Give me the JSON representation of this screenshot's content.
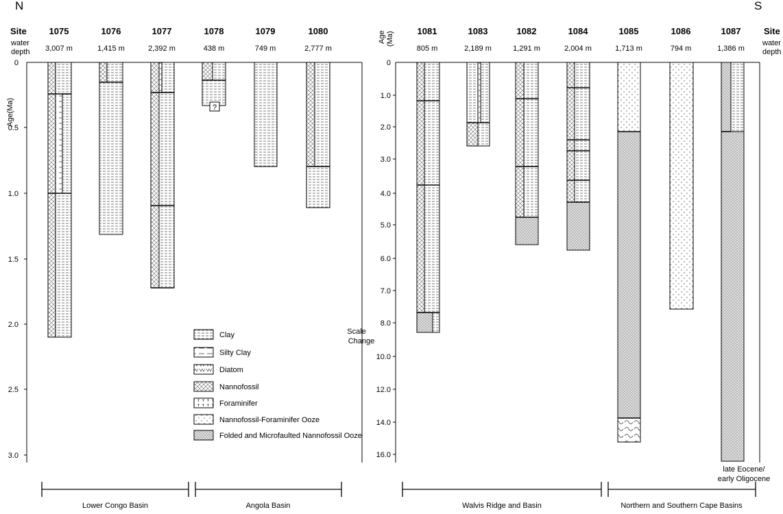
{
  "compass": {
    "north": "N",
    "south": "S"
  },
  "labels": {
    "site": "Site",
    "water_depth_line1": "water",
    "water_depth_line2": "depth",
    "age_left": "Age(Ma)",
    "age_right_line1": "Age",
    "age_right_line2": "(Ma)",
    "scale_change_line1": "Scale",
    "scale_change_line2": "Change",
    "question_mark": "?",
    "bottom_1087_line1": "late Eocene/",
    "bottom_1087_line2": "early Oligocene"
  },
  "left_panel": {
    "sites": [
      {
        "id": "1075",
        "depth": "3,007 m"
      },
      {
        "id": "1076",
        "depth": "1,415 m"
      },
      {
        "id": "1077",
        "depth": "2,392 m"
      },
      {
        "id": "1078",
        "depth": "438 m"
      },
      {
        "id": "1079",
        "depth": "749 m"
      },
      {
        "id": "1080",
        "depth": "2,777 m"
      }
    ],
    "ticks": [
      "0",
      "0.5",
      "1.0",
      "1.5",
      "2.0",
      "2.5",
      "3.0"
    ]
  },
  "right_panel": {
    "sites": [
      {
        "id": "1081",
        "depth": "805 m"
      },
      {
        "id": "1083",
        "depth": "2,189 m"
      },
      {
        "id": "1082",
        "depth": "1,291 m"
      },
      {
        "id": "1084",
        "depth": "2,004 m"
      },
      {
        "id": "1085",
        "depth": "1,713 m"
      },
      {
        "id": "1086",
        "depth": "794 m"
      },
      {
        "id": "1087",
        "depth": "1,386 m"
      }
    ],
    "ticks": [
      "0",
      "1.0",
      "2.0",
      "3.0",
      "4.0",
      "5.0",
      "6.0",
      "7.0",
      "8.0",
      "10.0",
      "12.0",
      "14.0",
      "16.0"
    ]
  },
  "legend": [
    {
      "label": "Clay",
      "pattern": "clay"
    },
    {
      "label": "Silty Clay",
      "pattern": "silty"
    },
    {
      "label": "Diatom",
      "pattern": "diatom"
    },
    {
      "label": "Nannofossil",
      "pattern": "nanno"
    },
    {
      "label": "Foraminifer",
      "pattern": "foram"
    },
    {
      "label": "Nannofossil-Foraminifer Ooze",
      "pattern": "ooze"
    },
    {
      "label": "Folded and Microfaulted Nannofossil Ooze",
      "pattern": "folded"
    }
  ],
  "basins": [
    {
      "name": "Lower Congo Basin"
    },
    {
      "name": "Angola Basin"
    },
    {
      "name": "Walvis Ridge and Basin"
    },
    {
      "name": "Northern and Southern Cape Basins"
    }
  ]
}
